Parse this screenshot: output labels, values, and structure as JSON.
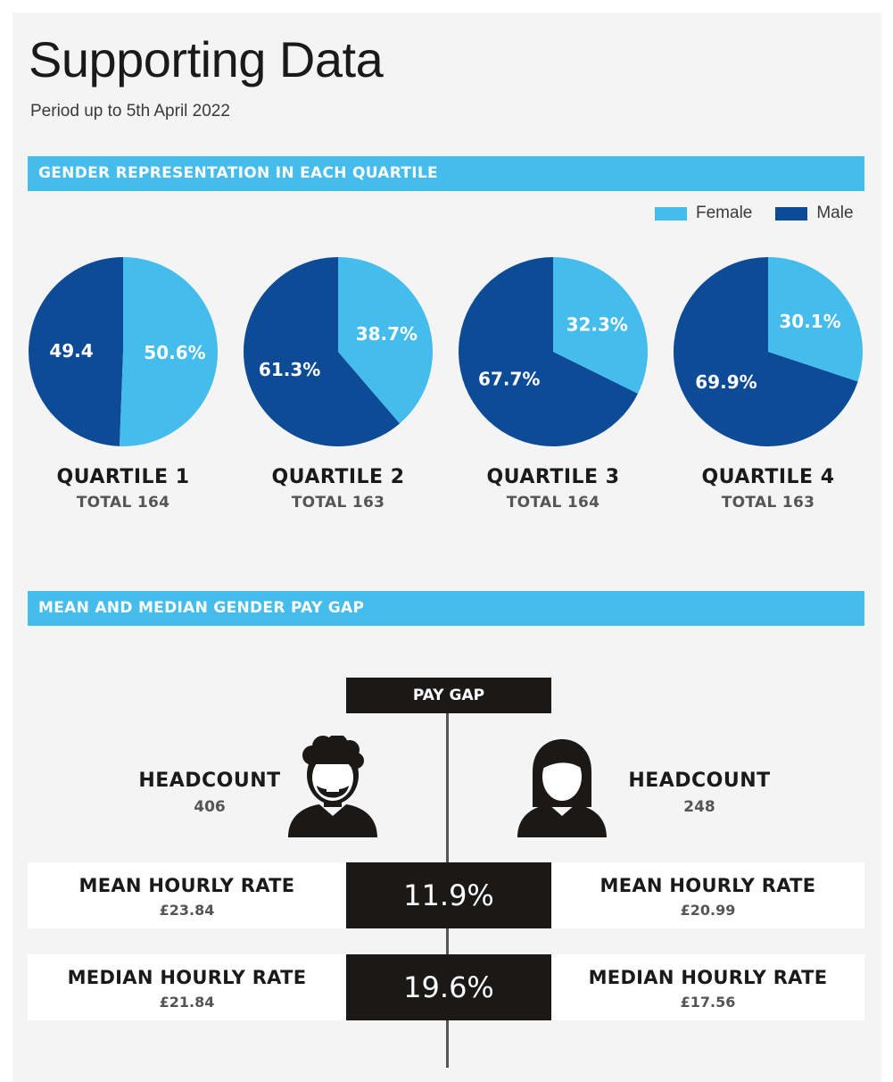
{
  "header": {
    "title": "Supporting Data",
    "subtitle": "Period up to 5th April 2022"
  },
  "sections": {
    "quartiles_title": "GENDER REPRESENTATION IN EACH QUARTILE",
    "paygap_title": "MEAN AND MEDIAN GENDER PAY GAP"
  },
  "legend": {
    "female": "Female",
    "male": "Male"
  },
  "colors": {
    "female": "#44bdec",
    "male": "#0e4b97",
    "accent": "#44bdec",
    "dark": "#1b1917"
  },
  "chart_data": {
    "type": "pie",
    "legend_position": "top-right",
    "series_names": [
      "Female",
      "Male"
    ],
    "pies": [
      {
        "name": "QUARTILE 1",
        "total": "TOTAL 164",
        "female": 50.6,
        "male": 49.4,
        "female_label": "50.6%",
        "male_label": "49.4"
      },
      {
        "name": "QUARTILE 2",
        "total": "TOTAL 163",
        "female": 38.7,
        "male": 61.3,
        "female_label": "38.7%",
        "male_label": "61.3%"
      },
      {
        "name": "QUARTILE 3",
        "total": "TOTAL 164",
        "female": 32.3,
        "male": 67.7,
        "female_label": "32.3%",
        "male_label": "67.7%"
      },
      {
        "name": "QUARTILE 4",
        "total": "TOTAL 163",
        "female": 30.1,
        "male": 69.9,
        "female_label": "30.1%",
        "male_label": "69.9%"
      }
    ]
  },
  "paygap": {
    "header": "PAY GAP",
    "male_icon": "male-person-icon",
    "female_icon": "female-person-icon",
    "male": {
      "headcount_label": "HEADCOUNT",
      "headcount": "406",
      "mean_label": "MEAN HOURLY RATE",
      "mean": "£23.84",
      "median_label": "MEDIAN HOURLY RATE",
      "median": "£21.84"
    },
    "female": {
      "headcount_label": "HEADCOUNT",
      "headcount": "248",
      "mean_label": "MEAN HOURLY RATE",
      "mean": "£20.99",
      "median_label": "MEDIAN HOURLY RATE",
      "median": "£17.56"
    },
    "mean_gap": "11.9%",
    "median_gap": "19.6%"
  }
}
